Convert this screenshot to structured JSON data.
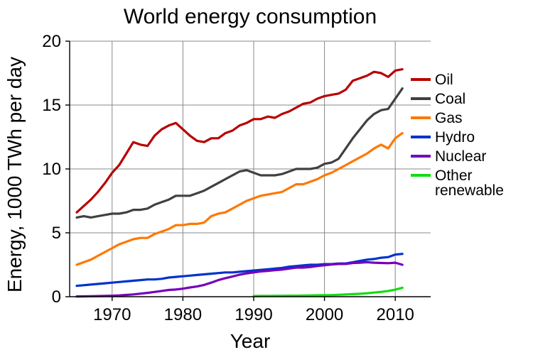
{
  "chart_data": {
    "type": "line",
    "title": "World energy consumption",
    "xlabel": "Year",
    "ylabel": "Energy, 1000 TWh per day",
    "xlim": [
      1964,
      2015
    ],
    "ylim": [
      0,
      20
    ],
    "xticks": [
      1970,
      1980,
      1990,
      2000,
      2010
    ],
    "yticks": [
      0,
      5,
      10,
      15,
      20
    ],
    "grid": true,
    "legend_position": "right",
    "series": [
      {
        "name": "Oil",
        "color": "#b80000",
        "x": [
          1965,
          1966,
          1967,
          1968,
          1969,
          1970,
          1971,
          1972,
          1973,
          1974,
          1975,
          1976,
          1977,
          1978,
          1979,
          1980,
          1981,
          1982,
          1983,
          1984,
          1985,
          1986,
          1987,
          1988,
          1989,
          1990,
          1991,
          1992,
          1993,
          1994,
          1995,
          1996,
          1997,
          1998,
          1999,
          2000,
          2001,
          2002,
          2003,
          2004,
          2005,
          2006,
          2007,
          2008,
          2009,
          2010,
          2011
        ],
        "y": [
          6.6,
          7.1,
          7.6,
          8.2,
          8.9,
          9.7,
          10.3,
          11.2,
          12.1,
          11.9,
          11.8,
          12.6,
          13.1,
          13.4,
          13.6,
          13.1,
          12.6,
          12.2,
          12.1,
          12.4,
          12.4,
          12.8,
          13.0,
          13.4,
          13.6,
          13.9,
          13.9,
          14.1,
          14.0,
          14.3,
          14.5,
          14.8,
          15.1,
          15.2,
          15.5,
          15.7,
          15.8,
          15.9,
          16.2,
          16.9,
          17.1,
          17.3,
          17.6,
          17.5,
          17.2,
          17.7,
          17.8
        ]
      },
      {
        "name": "Coal",
        "color": "#404040",
        "x": [
          1965,
          1966,
          1967,
          1968,
          1969,
          1970,
          1971,
          1972,
          1973,
          1974,
          1975,
          1976,
          1977,
          1978,
          1979,
          1980,
          1981,
          1982,
          1983,
          1984,
          1985,
          1986,
          1987,
          1988,
          1989,
          1990,
          1991,
          1992,
          1993,
          1994,
          1995,
          1996,
          1997,
          1998,
          1999,
          2000,
          2001,
          2002,
          2003,
          2004,
          2005,
          2006,
          2007,
          2008,
          2009,
          2010,
          2011
        ],
        "y": [
          6.2,
          6.3,
          6.2,
          6.3,
          6.4,
          6.5,
          6.5,
          6.6,
          6.8,
          6.8,
          6.9,
          7.2,
          7.4,
          7.6,
          7.9,
          7.9,
          7.9,
          8.1,
          8.3,
          8.6,
          8.9,
          9.2,
          9.5,
          9.8,
          9.9,
          9.7,
          9.5,
          9.5,
          9.5,
          9.6,
          9.8,
          10.0,
          10.0,
          10.0,
          10.1,
          10.4,
          10.5,
          10.8,
          11.6,
          12.4,
          13.1,
          13.8,
          14.3,
          14.6,
          14.7,
          15.5,
          16.3
        ]
      },
      {
        "name": "Gas",
        "color": "#ff7700",
        "x": [
          1965,
          1966,
          1967,
          1968,
          1969,
          1970,
          1971,
          1972,
          1973,
          1974,
          1975,
          1976,
          1977,
          1978,
          1979,
          1980,
          1981,
          1982,
          1983,
          1984,
          1985,
          1986,
          1987,
          1988,
          1989,
          1990,
          1991,
          1992,
          1993,
          1994,
          1995,
          1996,
          1997,
          1998,
          1999,
          2000,
          2001,
          2002,
          2003,
          2004,
          2005,
          2006,
          2007,
          2008,
          2009,
          2010,
          2011
        ],
        "y": [
          2.5,
          2.7,
          2.9,
          3.2,
          3.5,
          3.8,
          4.1,
          4.3,
          4.5,
          4.6,
          4.6,
          4.9,
          5.1,
          5.3,
          5.6,
          5.6,
          5.7,
          5.7,
          5.8,
          6.3,
          6.5,
          6.6,
          6.9,
          7.2,
          7.5,
          7.7,
          7.9,
          8.0,
          8.1,
          8.2,
          8.5,
          8.8,
          8.8,
          9.0,
          9.2,
          9.5,
          9.7,
          10.0,
          10.3,
          10.6,
          10.9,
          11.2,
          11.6,
          11.9,
          11.6,
          12.4,
          12.8
        ]
      },
      {
        "name": "Hydro",
        "color": "#0033cc",
        "x": [
          1965,
          1966,
          1967,
          1968,
          1969,
          1970,
          1971,
          1972,
          1973,
          1974,
          1975,
          1976,
          1977,
          1978,
          1979,
          1980,
          1981,
          1982,
          1983,
          1984,
          1985,
          1986,
          1987,
          1988,
          1989,
          1990,
          1991,
          1992,
          1993,
          1994,
          1995,
          1996,
          1997,
          1998,
          1999,
          2000,
          2001,
          2002,
          2003,
          2004,
          2005,
          2006,
          2007,
          2008,
          2009,
          2010,
          2011
        ],
        "y": [
          0.85,
          0.9,
          0.95,
          1.0,
          1.05,
          1.1,
          1.15,
          1.2,
          1.25,
          1.3,
          1.35,
          1.35,
          1.4,
          1.5,
          1.55,
          1.6,
          1.65,
          1.7,
          1.75,
          1.8,
          1.85,
          1.9,
          1.9,
          1.95,
          2.0,
          2.05,
          2.1,
          2.15,
          2.2,
          2.25,
          2.35,
          2.4,
          2.45,
          2.5,
          2.5,
          2.55,
          2.55,
          2.6,
          2.6,
          2.7,
          2.8,
          2.9,
          2.95,
          3.05,
          3.1,
          3.3,
          3.35
        ]
      },
      {
        "name": "Nuclear",
        "color": "#7700bb",
        "x": [
          1965,
          1966,
          1967,
          1968,
          1969,
          1970,
          1971,
          1972,
          1973,
          1974,
          1975,
          1976,
          1977,
          1978,
          1979,
          1980,
          1981,
          1982,
          1983,
          1984,
          1985,
          1986,
          1987,
          1988,
          1989,
          1990,
          1991,
          1992,
          1993,
          1994,
          1995,
          1996,
          1997,
          1998,
          1999,
          2000,
          2001,
          2002,
          2003,
          2004,
          2005,
          2006,
          2007,
          2008,
          2009,
          2010,
          2011
        ],
        "y": [
          0.02,
          0.03,
          0.04,
          0.05,
          0.06,
          0.08,
          0.1,
          0.14,
          0.18,
          0.24,
          0.3,
          0.37,
          0.45,
          0.53,
          0.56,
          0.63,
          0.72,
          0.8,
          0.92,
          1.1,
          1.3,
          1.45,
          1.58,
          1.72,
          1.82,
          1.9,
          1.98,
          2.02,
          2.08,
          2.12,
          2.2,
          2.28,
          2.28,
          2.32,
          2.4,
          2.46,
          2.52,
          2.56,
          2.56,
          2.64,
          2.66,
          2.7,
          2.66,
          2.64,
          2.62,
          2.66,
          2.5
        ]
      },
      {
        "name": "Other renewable",
        "legend_lines": [
          "Other",
          "renewable"
        ],
        "color": "#11dd11",
        "x": [
          1990,
          1991,
          1992,
          1993,
          1994,
          1995,
          1996,
          1997,
          1998,
          1999,
          2000,
          2001,
          2002,
          2003,
          2004,
          2005,
          2006,
          2007,
          2008,
          2009,
          2010,
          2011
        ],
        "y": [
          0.05,
          0.06,
          0.06,
          0.07,
          0.07,
          0.08,
          0.08,
          0.09,
          0.1,
          0.11,
          0.12,
          0.13,
          0.15,
          0.17,
          0.2,
          0.23,
          0.27,
          0.32,
          0.38,
          0.45,
          0.55,
          0.7
        ]
      }
    ]
  }
}
